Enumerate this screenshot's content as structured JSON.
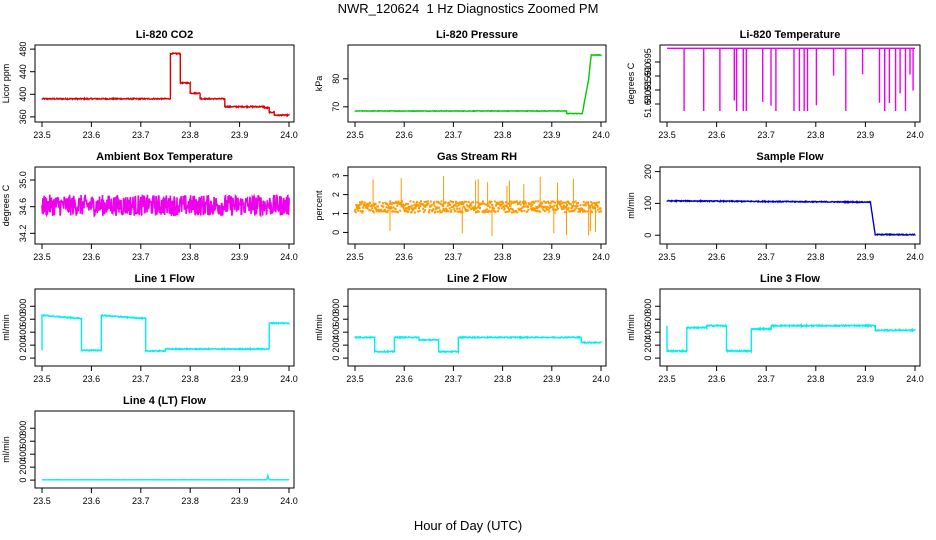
{
  "page": {
    "title": "NWR_120624  1 Hz Diagnostics Zoomed PM",
    "xlabel": "Hour of Day (UTC)"
  },
  "chart_data": [
    {
      "type": "line",
      "title": "Li-820 CO2",
      "ylabel": "Licor ppm",
      "color": "#dd0000",
      "xlim": [
        23.5,
        24.0
      ],
      "ylim": [
        358,
        482
      ],
      "xticks": [
        "23.5",
        "23.6",
        "23.7",
        "23.8",
        "23.9",
        "24.0"
      ],
      "yticks": [
        "360",
        "400",
        "440",
        "480"
      ],
      "x": [
        23.5,
        23.76,
        23.76,
        23.78,
        23.78,
        23.8,
        23.8,
        23.82,
        23.82,
        23.87,
        23.87,
        23.95,
        23.95,
        23.96,
        23.96,
        23.97,
        23.97,
        24.0
      ],
      "y": [
        392,
        392,
        472,
        472,
        420,
        420,
        402,
        402,
        392,
        392,
        378,
        378,
        376,
        376,
        368,
        368,
        363,
        363
      ],
      "noise": 1
    },
    {
      "type": "line",
      "title": "Li-820 Pressure",
      "ylabel": "kPa",
      "color": "#00cc00",
      "xlim": [
        23.5,
        24.0
      ],
      "ylim": [
        66,
        91
      ],
      "xticks": [
        "23.5",
        "23.6",
        "23.7",
        "23.8",
        "23.9",
        "24.0"
      ],
      "yticks": [
        "70",
        "80"
      ],
      "x": [
        23.5,
        23.93,
        23.93,
        23.962,
        23.975,
        23.98,
        24.0
      ],
      "y": [
        68.5,
        68.5,
        67.6,
        67.6,
        80,
        88.5,
        88.5
      ],
      "noise": 0.1
    },
    {
      "type": "line",
      "title": "Li-820 Temperature",
      "ylabel": "degrees C",
      "color": "#ee00ee",
      "xlim": [
        23.5,
        24.0
      ],
      "ylim": [
        51.675,
        51.7
      ],
      "xticks": [
        "23.5",
        "23.6",
        "23.7",
        "23.8",
        "23.9",
        "24.0"
      ],
      "yticks": [
        "51.680",
        "51.685",
        "51.690",
        "51.695"
      ],
      "x": [
        23.5,
        24.0
      ],
      "y": [
        51.7,
        51.7
      ],
      "noise": 0
    },
    {
      "type": "line",
      "title": "Ambient Box Temperature",
      "ylabel": "degrees C",
      "color": "#ee00ee",
      "xlim": [
        23.5,
        24.0
      ],
      "ylim": [
        34.1,
        35.15
      ],
      "xticks": [
        "23.5",
        "23.6",
        "23.7",
        "23.8",
        "23.9",
        "24.0"
      ],
      "yticks": [
        "34.2",
        "34.6",
        "35.0"
      ],
      "x": [
        23.5,
        24.0
      ],
      "y": [
        34.62,
        34.62
      ],
      "noise": 0.16
    },
    {
      "type": "scatter",
      "title": "Gas Stream RH",
      "ylabel": "percent",
      "color": "#ff9900",
      "xlim": [
        23.5,
        24.0
      ],
      "ylim": [
        -0.4,
        3.3
      ],
      "xticks": [
        "23.5",
        "23.6",
        "23.7",
        "23.8",
        "23.9",
        "24.0"
      ],
      "yticks": [
        "0",
        "1",
        "2",
        "3"
      ],
      "x": [
        23.5,
        24.0
      ],
      "y": [
        1.35,
        1.35
      ],
      "noise": 0.3
    },
    {
      "type": "line",
      "title": "Sample Flow",
      "ylabel": "ml/min",
      "color": "#0000cc",
      "xlim": [
        23.5,
        24.0
      ],
      "ylim": [
        -15,
        205
      ],
      "xticks": [
        "23.5",
        "23.6",
        "23.7",
        "23.8",
        "23.9",
        "24.0"
      ],
      "yticks": [
        "0",
        "100",
        "200"
      ],
      "x": [
        23.5,
        23.91,
        23.91,
        23.92,
        23.92,
        24.0
      ],
      "y": [
        108,
        104,
        104,
        0,
        2,
        2
      ],
      "noise": 1.5
    },
    {
      "type": "line",
      "title": "Line 1 Flow",
      "ylabel": "ml/min",
      "color": "#00eeee",
      "xlim": [
        23.5,
        24.0
      ],
      "ylim": [
        -60,
        1020
      ],
      "xticks": [
        "23.5",
        "23.6",
        "23.7",
        "23.8",
        "23.9",
        "24.0"
      ],
      "yticks": [
        "0",
        "200",
        "400",
        "600",
        "800"
      ],
      "x": [
        23.5,
        23.5,
        23.58,
        23.58,
        23.62,
        23.62,
        23.71,
        23.71,
        23.75,
        23.75,
        23.96,
        23.96,
        24.0
      ],
      "y": [
        120,
        660,
        610,
        120,
        120,
        660,
        610,
        110,
        110,
        140,
        140,
        540,
        540
      ],
      "noise": 8
    },
    {
      "type": "line",
      "title": "Line 2 Flow",
      "ylabel": "ml/min",
      "color": "#00eeee",
      "xlim": [
        23.5,
        24.0
      ],
      "ylim": [
        -60,
        1020
      ],
      "xticks": [
        "23.5",
        "23.6",
        "23.7",
        "23.8",
        "23.9",
        "24.0"
      ],
      "yticks": [
        "0",
        "200",
        "400",
        "600",
        "800"
      ],
      "x": [
        23.5,
        23.54,
        23.54,
        23.58,
        23.58,
        23.63,
        23.63,
        23.67,
        23.67,
        23.71,
        23.71,
        23.96,
        23.96,
        24.0
      ],
      "y": [
        320,
        320,
        100,
        100,
        320,
        320,
        280,
        280,
        100,
        100,
        320,
        320,
        240,
        240
      ],
      "noise": 8
    },
    {
      "type": "line",
      "title": "Line 3 Flow",
      "ylabel": "ml/min",
      "color": "#00eeee",
      "xlim": [
        23.5,
        24.0
      ],
      "ylim": [
        -60,
        1020
      ],
      "xticks": [
        "23.5",
        "23.6",
        "23.7",
        "23.8",
        "23.9",
        "24.0"
      ],
      "yticks": [
        "0",
        "200",
        "400",
        "600",
        "800"
      ],
      "x": [
        23.5,
        23.5,
        23.54,
        23.54,
        23.58,
        23.58,
        23.62,
        23.62,
        23.67,
        23.67,
        23.71,
        23.71,
        23.92,
        23.92,
        24.0
      ],
      "y": [
        500,
        110,
        110,
        470,
        470,
        500,
        500,
        110,
        110,
        450,
        450,
        500,
        500,
        430,
        430
      ],
      "noise": 10
    },
    {
      "type": "line",
      "title": "Line 4 (LT) Flow",
      "ylabel": "ml/min",
      "color": "#00eeee",
      "xlim": [
        23.5,
        24.0
      ],
      "ylim": [
        -60,
        1020
      ],
      "xticks": [
        "23.5",
        "23.6",
        "23.7",
        "23.8",
        "23.9",
        "24.0"
      ],
      "yticks": [
        "0",
        "200",
        "400",
        "600",
        "800"
      ],
      "x": [
        23.5,
        23.955,
        23.957,
        23.96,
        24.0
      ],
      "y": [
        5,
        5,
        70,
        5,
        5
      ],
      "noise": 1
    }
  ]
}
